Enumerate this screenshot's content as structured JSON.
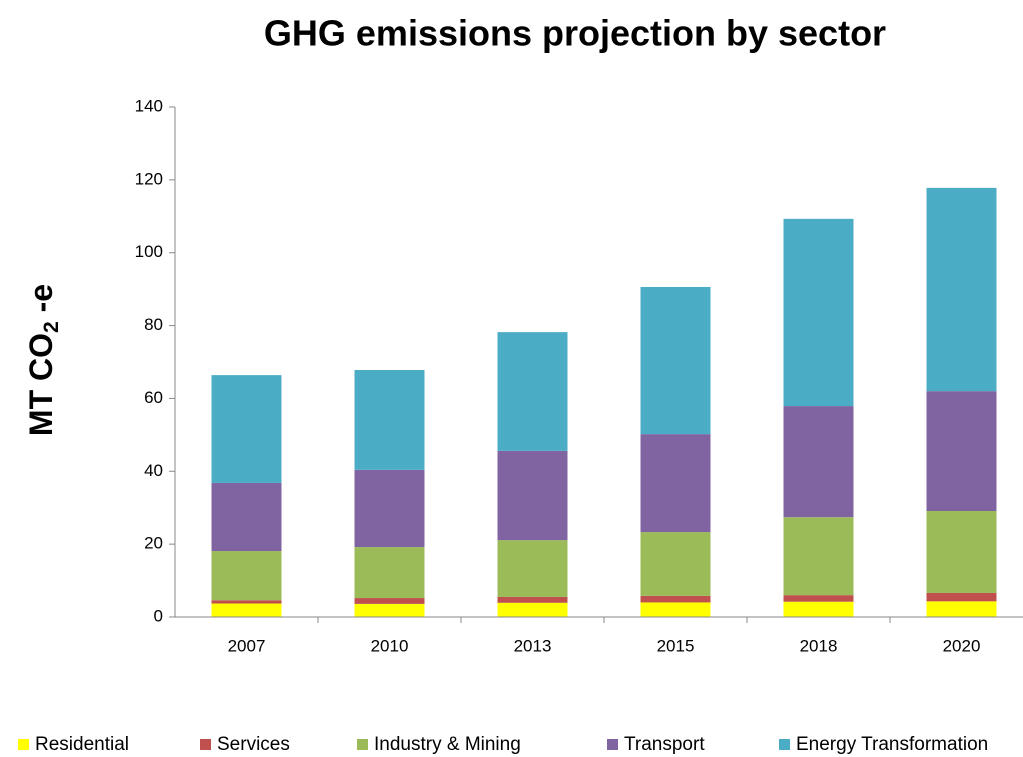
{
  "chart_data": {
    "type": "stacked_bar",
    "title": "GHG emissions projection by sector",
    "y_label": [
      "MT CO",
      "2",
      " -e"
    ],
    "categories": [
      "2007",
      "2010",
      "2013",
      "2015",
      "2018",
      "2020"
    ],
    "series": [
      {
        "name": "Residential",
        "color": "#ffff00",
        "values": [
          3.7,
          3.6,
          3.9,
          4.0,
          4.2,
          4.3
        ]
      },
      {
        "name": "Services",
        "color": "#c0504d",
        "values": [
          0.9,
          1.6,
          1.6,
          1.8,
          1.8,
          2.3
        ]
      },
      {
        "name": "Industry & Mining",
        "color": "#9bbb59",
        "values": [
          13.5,
          14.0,
          15.6,
          17.5,
          21.4,
          22.5
        ]
      },
      {
        "name": "Transport",
        "color": "#8064a2",
        "values": [
          18.7,
          21.2,
          24.5,
          26.9,
          30.5,
          32.9
        ]
      },
      {
        "name": "Energy Transformation",
        "color": "#4bacc6",
        "values": [
          29.6,
          27.4,
          32.6,
          40.4,
          51.4,
          55.8
        ]
      }
    ],
    "ylim": [
      0,
      140
    ],
    "yticks": [
      0,
      20,
      40,
      60,
      80,
      100,
      120,
      140
    ],
    "legend": "bottom"
  }
}
